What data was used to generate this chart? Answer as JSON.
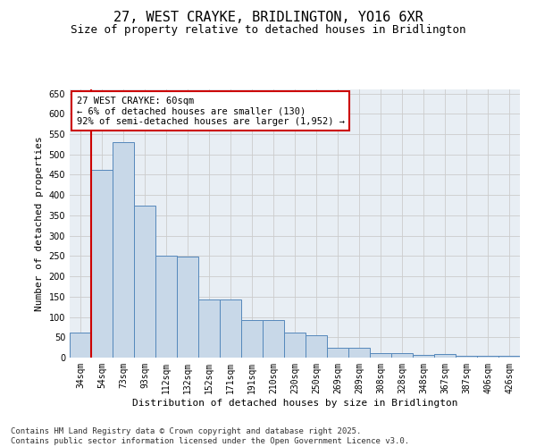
{
  "title": "27, WEST CRAYKE, BRIDLINGTON, YO16 6XR",
  "subtitle": "Size of property relative to detached houses in Bridlington",
  "xlabel": "Distribution of detached houses by size in Bridlington",
  "ylabel": "Number of detached properties",
  "categories": [
    "34sqm",
    "54sqm",
    "73sqm",
    "93sqm",
    "112sqm",
    "132sqm",
    "152sqm",
    "171sqm",
    "191sqm",
    "210sqm",
    "230sqm",
    "250sqm",
    "269sqm",
    "289sqm",
    "308sqm",
    "328sqm",
    "348sqm",
    "367sqm",
    "387sqm",
    "406sqm",
    "426sqm"
  ],
  "values": [
    62,
    462,
    530,
    375,
    250,
    248,
    142,
    142,
    93,
    93,
    62,
    55,
    25,
    25,
    10,
    10,
    6,
    8,
    5,
    5,
    4
  ],
  "bar_color": "#c8d8e8",
  "bar_edge_color": "#5588bb",
  "annotation_text": "27 WEST CRAYKE: 60sqm\n← 6% of detached houses are smaller (130)\n92% of semi-detached houses are larger (1,952) →",
  "annotation_box_color": "#ffffff",
  "annotation_box_edge": "#cc0000",
  "red_line_color": "#cc0000",
  "grid_color": "#cccccc",
  "background_color": "#e8eef4",
  "footer_text": "Contains HM Land Registry data © Crown copyright and database right 2025.\nContains public sector information licensed under the Open Government Licence v3.0.",
  "ylim": [
    0,
    660
  ],
  "yticks": [
    0,
    50,
    100,
    150,
    200,
    250,
    300,
    350,
    400,
    450,
    500,
    550,
    600,
    650
  ],
  "title_fontsize": 11,
  "subtitle_fontsize": 9,
  "axis_label_fontsize": 8,
  "tick_fontsize": 7,
  "annotation_fontsize": 7.5,
  "footer_fontsize": 6.5
}
